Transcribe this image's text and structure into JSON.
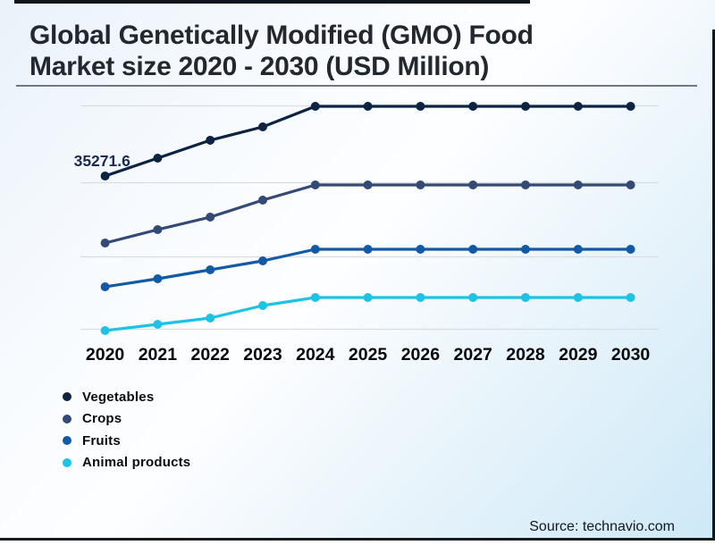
{
  "title": {
    "line1": "Global Genetically Modified (GMO) Food",
    "line2": "Market size 2020 - 2030 (USD Million)"
  },
  "source": {
    "label": "Source: technavio.com"
  },
  "chart_data": {
    "type": "line",
    "title": "Global Genetically Modified (GMO) Food Market size 2020 - 2030 (USD Million)",
    "x": [
      2020,
      2021,
      2022,
      2023,
      2024,
      2025,
      2026,
      2027,
      2028,
      2029,
      2030
    ],
    "ylabel": "USD Million",
    "ylim": [
      13200,
      46400
    ],
    "grid": true,
    "gridline_color": "#d9dde1",
    "legend_position": "bottom-left",
    "annotation_color": "#1b2a52",
    "series": [
      {
        "name": "Vegetables",
        "color": "#0d2342",
        "values": [
          35271.6,
          37680,
          40090,
          41900,
          44670,
          44670,
          44670,
          44670,
          44670,
          44670,
          44670
        ]
      },
      {
        "name": "Crops",
        "color": "#334a75",
        "values": [
          26240,
          28040,
          29730,
          32020,
          34070,
          34070,
          34070,
          34070,
          34070,
          34070,
          34070
        ]
      },
      {
        "name": "Fruits",
        "color": "#115aa8",
        "values": [
          20330,
          21420,
          22620,
          23830,
          25390,
          25390,
          25390,
          25390,
          25390,
          25390,
          25390
        ]
      },
      {
        "name": "Animal products",
        "color": "#1cc3e6",
        "values": [
          14430,
          15270,
          16120,
          17800,
          18890,
          18890,
          18890,
          18890,
          18890,
          18890,
          18890
        ]
      }
    ],
    "annotations": [
      {
        "series": "Vegetables",
        "x": 2020,
        "text": "35271.6"
      }
    ]
  }
}
